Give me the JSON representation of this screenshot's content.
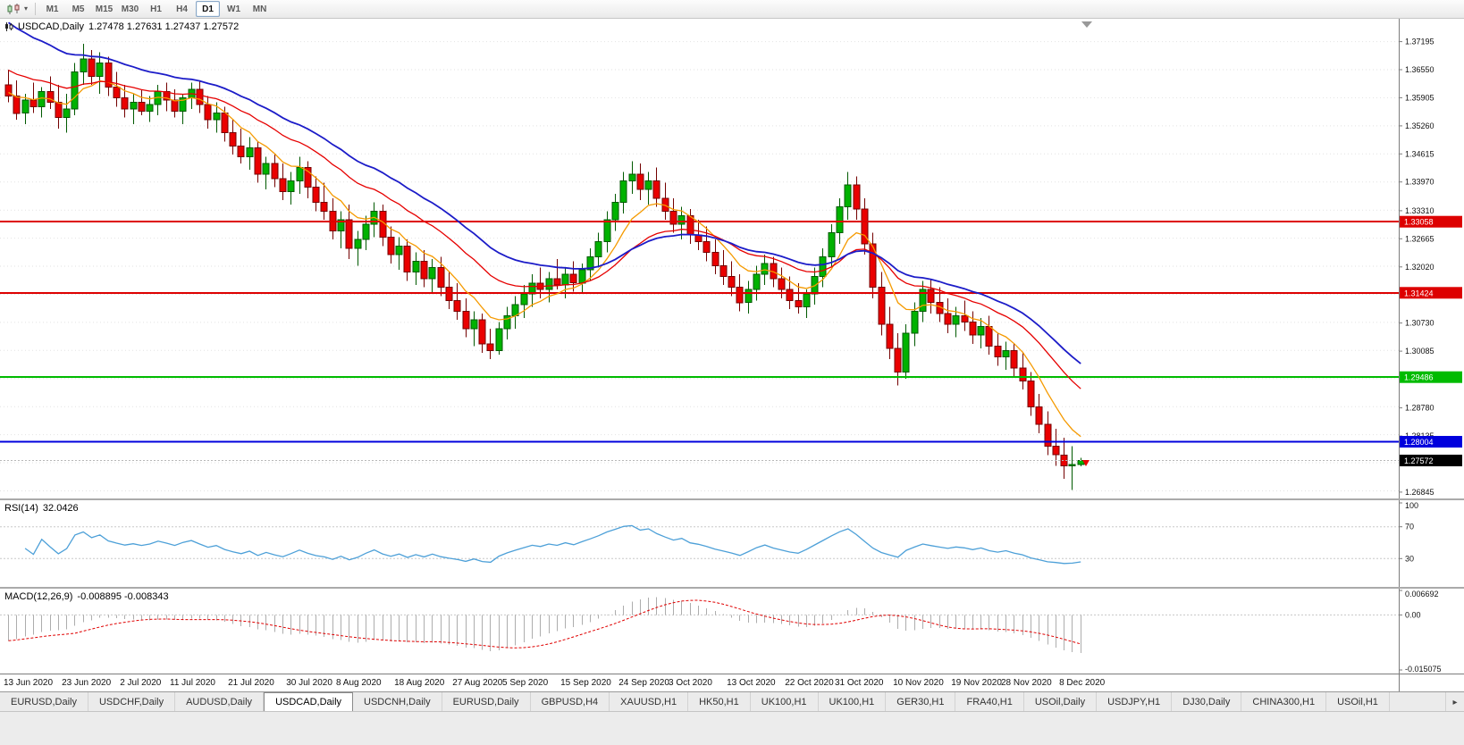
{
  "toolbar": {
    "dropdown_caret": "▾",
    "timeframes": [
      {
        "label": "M1",
        "active": false
      },
      {
        "label": "M5",
        "active": false
      },
      {
        "label": "M15",
        "active": false
      },
      {
        "label": "M30",
        "active": false
      },
      {
        "label": "H1",
        "active": false
      },
      {
        "label": "H4",
        "active": false
      },
      {
        "label": "D1",
        "active": true
      },
      {
        "label": "W1",
        "active": false
      },
      {
        "label": "MN",
        "active": false
      }
    ]
  },
  "price_panel": {
    "title": "USDCAD,Daily",
    "ohlc": "1.27478 1.27631 1.27437 1.27572"
  },
  "rsi_panel": {
    "label": "RSI(14)",
    "value": "32.0426",
    "period": 14,
    "color": "#4da0d8",
    "axis_values": [
      {
        "value": 100,
        "label": "100",
        "dotted": false
      },
      {
        "value": 70,
        "label": "70",
        "dotted": true
      },
      {
        "value": 30,
        "label": "30",
        "dotted": true
      }
    ]
  },
  "macd_panel": {
    "label": "MACD(12,26,9)",
    "value": "-0.008895 -0.008343",
    "fast": 12,
    "slow": 26,
    "signal": 9,
    "axis": {
      "top": {
        "label": "0.006692",
        "value": 0.006692
      },
      "zero": {
        "label": "0.00",
        "value": 0
      },
      "bottom": {
        "label": "-0.015075",
        "value": -0.015075
      }
    }
  },
  "hlines": [
    {
      "value": 1.33058,
      "label": "1.33058",
      "color": "#dd0000",
      "width": 2
    },
    {
      "value": 1.31424,
      "label": "1.31424",
      "color": "#dd0000",
      "width": 2
    },
    {
      "value": 1.29486,
      "label": "1.29486",
      "color": "#00bb00",
      "width": 2
    },
    {
      "value": 1.28004,
      "label": "1.28004",
      "color": "#0000dd",
      "width": 2
    }
  ],
  "current_price": {
    "label": "1.27572",
    "value": 1.27572
  },
  "x_axis_labels": [
    {
      "text": "13 Jun 2020",
      "bar": 0
    },
    {
      "text": "23 Jun 2020",
      "bar": 7
    },
    {
      "text": "2 Jul 2020",
      "bar": 14
    },
    {
      "text": "11 Jul 2020",
      "bar": 20
    },
    {
      "text": "21 Jul 2020",
      "bar": 27
    },
    {
      "text": "30 Jul 2020",
      "bar": 34
    },
    {
      "text": "8 Aug 2020",
      "bar": 40
    },
    {
      "text": "18 Aug 2020",
      "bar": 47
    },
    {
      "text": "27 Aug 2020",
      "bar": 54
    },
    {
      "text": "5 Sep 2020",
      "bar": 60
    },
    {
      "text": "15 Sep 2020",
      "bar": 67
    },
    {
      "text": "24 Sep 2020",
      "bar": 74
    },
    {
      "text": "3 Oct 2020",
      "bar": 80
    },
    {
      "text": "13 Oct 2020",
      "bar": 87
    },
    {
      "text": "22 Oct 2020",
      "bar": 94
    },
    {
      "text": "31 Oct 2020",
      "bar": 100
    },
    {
      "text": "10 Nov 2020",
      "bar": 107
    },
    {
      "text": "19 Nov 2020",
      "bar": 114
    },
    {
      "text": "28 Nov 2020",
      "bar": 120
    },
    {
      "text": "8 Dec 2020",
      "bar": 127
    }
  ],
  "tabs": {
    "scroll_right_glyph": "▸",
    "items": [
      {
        "label": "EURUSD,Daily",
        "active": false
      },
      {
        "label": "USDCHF,Daily",
        "active": false
      },
      {
        "label": "AUDUSD,Daily",
        "active": false
      },
      {
        "label": "USDCAD,Daily",
        "active": true
      },
      {
        "label": "USDCNH,Daily",
        "active": false
      },
      {
        "label": "EURUSD,Daily",
        "active": false
      },
      {
        "label": "GBPUSD,H4",
        "active": false
      },
      {
        "label": "XAUUSD,H1",
        "active": false
      },
      {
        "label": "HK50,H1",
        "active": false
      },
      {
        "label": "UK100,H1",
        "active": false
      },
      {
        "label": "UK100,H1",
        "active": false
      },
      {
        "label": "GER30,H1",
        "active": false
      },
      {
        "label": "FRA40,H1",
        "active": false
      },
      {
        "label": "USOil,Daily",
        "active": false
      },
      {
        "label": "USDJPY,H1",
        "active": false
      },
      {
        "label": "DJ30,Daily",
        "active": false
      },
      {
        "label": "CHINA300,H1",
        "active": false
      },
      {
        "label": "USOil,H1",
        "active": false
      }
    ]
  },
  "chart_data": {
    "type": "candlestick",
    "symbol": "USDCAD",
    "timeframe": "Daily",
    "ylim": [
      1.267,
      1.3772
    ],
    "grid_start": 1.37195,
    "grid_step": 0.00645,
    "colors": {
      "bull": "#00b200",
      "bull_border": "#005a00",
      "bear": "#ea0000",
      "bear_border": "#740000",
      "macd_hist": "#adadad",
      "macd_signal": "#e00000",
      "grid": "#e2e2e2",
      "axis_line": "#7c7c7c"
    },
    "y_ticks": [
      {
        "price": 1.37195,
        "label": "1.37195"
      },
      {
        "price": 1.3655,
        "label": "1.36550"
      },
      {
        "price": 1.35905,
        "label": "1.35905"
      },
      {
        "price": 1.3526,
        "label": "1.35260"
      },
      {
        "price": 1.34615,
        "label": "1.34615"
      },
      {
        "price": 1.3397,
        "label": "1.33970"
      },
      {
        "price": 1.3331,
        "label": "1.33310"
      },
      {
        "price": 1.32665,
        "label": "1.32665"
      },
      {
        "price": 1.3202,
        "label": "1.32020"
      },
      {
        "price": 1.3073,
        "label": "1.30730"
      },
      {
        "price": 1.30085,
        "label": "1.30085"
      },
      {
        "price": 1.2878,
        "label": "1.28780"
      },
      {
        "price": 1.28135,
        "label": "1.28135"
      },
      {
        "price": 1.26845,
        "label": "1.26845"
      }
    ],
    "moving_averages": [
      {
        "period": 8,
        "seed": 1.3605,
        "color": "#f59a00",
        "width": 1.3
      },
      {
        "period": 20,
        "seed": 1.366,
        "color": "#e60000",
        "width": 1.3
      },
      {
        "period": 30,
        "seed": 1.3775,
        "color": "#1c1cc8",
        "width": 1.8
      }
    ],
    "candles": [
      [
        1.362,
        1.3655,
        1.358,
        1.3595
      ],
      [
        1.3595,
        1.363,
        1.354,
        1.3555
      ],
      [
        1.3555,
        1.36,
        1.353,
        1.3585
      ],
      [
        1.3585,
        1.3625,
        1.3555,
        1.357
      ],
      [
        1.357,
        1.3615,
        1.3545,
        1.3605
      ],
      [
        1.3605,
        1.364,
        1.3565,
        1.358
      ],
      [
        1.358,
        1.362,
        1.352,
        1.3545
      ],
      [
        1.3545,
        1.36,
        1.351,
        1.3565
      ],
      [
        1.3565,
        1.367,
        1.355,
        1.365
      ],
      [
        1.365,
        1.3715,
        1.362,
        1.368
      ],
      [
        1.368,
        1.37,
        1.362,
        1.364
      ],
      [
        1.364,
        1.3695,
        1.36,
        1.367
      ],
      [
        1.367,
        1.3685,
        1.3595,
        1.3615
      ],
      [
        1.3615,
        1.365,
        1.357,
        1.359
      ],
      [
        1.359,
        1.362,
        1.3545,
        1.3565
      ],
      [
        1.3565,
        1.36,
        1.353,
        1.358
      ],
      [
        1.358,
        1.361,
        1.355,
        1.356
      ],
      [
        1.356,
        1.3595,
        1.3535,
        1.3575
      ],
      [
        1.3575,
        1.362,
        1.355,
        1.3605
      ],
      [
        1.3605,
        1.3625,
        1.356,
        1.3585
      ],
      [
        1.3585,
        1.361,
        1.3545,
        1.356
      ],
      [
        1.356,
        1.36,
        1.353,
        1.359
      ],
      [
        1.359,
        1.3625,
        1.3565,
        1.361
      ],
      [
        1.361,
        1.363,
        1.3555,
        1.3575
      ],
      [
        1.3575,
        1.3595,
        1.352,
        1.354
      ],
      [
        1.354,
        1.358,
        1.351,
        1.3555
      ],
      [
        1.3555,
        1.357,
        1.349,
        1.351
      ],
      [
        1.351,
        1.354,
        1.346,
        1.348
      ],
      [
        1.348,
        1.352,
        1.344,
        1.3455
      ],
      [
        1.3455,
        1.35,
        1.3425,
        1.3475
      ],
      [
        1.3475,
        1.349,
        1.3395,
        1.3415
      ],
      [
        1.3415,
        1.3455,
        1.338,
        1.344
      ],
      [
        1.344,
        1.346,
        1.3385,
        1.3405
      ],
      [
        1.3405,
        1.344,
        1.3355,
        1.3375
      ],
      [
        1.3375,
        1.342,
        1.3345,
        1.34
      ],
      [
        1.34,
        1.3455,
        1.337,
        1.343
      ],
      [
        1.343,
        1.3445,
        1.336,
        1.3385
      ],
      [
        1.3385,
        1.341,
        1.333,
        1.335
      ],
      [
        1.335,
        1.3395,
        1.331,
        1.333
      ],
      [
        1.333,
        1.336,
        1.3265,
        1.3285
      ],
      [
        1.3285,
        1.333,
        1.3245,
        1.331
      ],
      [
        1.331,
        1.3345,
        1.322,
        1.3245
      ],
      [
        1.3245,
        1.3285,
        1.3205,
        1.3265
      ],
      [
        1.3265,
        1.332,
        1.324,
        1.33
      ],
      [
        1.33,
        1.335,
        1.327,
        1.333
      ],
      [
        1.333,
        1.3345,
        1.325,
        1.327
      ],
      [
        1.327,
        1.3295,
        1.321,
        1.323
      ],
      [
        1.323,
        1.327,
        1.3195,
        1.325
      ],
      [
        1.325,
        1.3265,
        1.317,
        1.319
      ],
      [
        1.319,
        1.3235,
        1.316,
        1.3215
      ],
      [
        1.3215,
        1.324,
        1.3155,
        1.3175
      ],
      [
        1.3175,
        1.322,
        1.314,
        1.32
      ],
      [
        1.32,
        1.3225,
        1.3135,
        1.3155
      ],
      [
        1.3155,
        1.319,
        1.3105,
        1.3125
      ],
      [
        1.3125,
        1.3165,
        1.308,
        1.31
      ],
      [
        1.31,
        1.313,
        1.304,
        1.306
      ],
      [
        1.306,
        1.31,
        1.302,
        1.308
      ],
      [
        1.308,
        1.3095,
        1.3005,
        1.3025
      ],
      [
        1.3025,
        1.306,
        1.299,
        1.301
      ],
      [
        1.301,
        1.3075,
        1.3,
        1.306
      ],
      [
        1.306,
        1.311,
        1.3035,
        1.309
      ],
      [
        1.309,
        1.3135,
        1.306,
        1.3115
      ],
      [
        1.3115,
        1.316,
        1.3085,
        1.314
      ],
      [
        1.314,
        1.3185,
        1.311,
        1.3165
      ],
      [
        1.3165,
        1.32,
        1.313,
        1.315
      ],
      [
        1.315,
        1.319,
        1.312,
        1.3175
      ],
      [
        1.3175,
        1.322,
        1.315,
        1.316
      ],
      [
        1.316,
        1.32,
        1.313,
        1.3185
      ],
      [
        1.3185,
        1.3215,
        1.3145,
        1.3165
      ],
      [
        1.3165,
        1.321,
        1.314,
        1.3195
      ],
      [
        1.3195,
        1.3245,
        1.317,
        1.3225
      ],
      [
        1.3225,
        1.328,
        1.32,
        1.326
      ],
      [
        1.326,
        1.333,
        1.3235,
        1.331
      ],
      [
        1.331,
        1.337,
        1.3285,
        1.335
      ],
      [
        1.335,
        1.342,
        1.3325,
        1.34
      ],
      [
        1.34,
        1.3445,
        1.337,
        1.3415
      ],
      [
        1.3415,
        1.344,
        1.3355,
        1.338
      ],
      [
        1.338,
        1.342,
        1.3345,
        1.34
      ],
      [
        1.34,
        1.343,
        1.334,
        1.336
      ],
      [
        1.336,
        1.3395,
        1.331,
        1.333
      ],
      [
        1.333,
        1.336,
        1.328,
        1.33
      ],
      [
        1.33,
        1.334,
        1.3265,
        1.332
      ],
      [
        1.332,
        1.3335,
        1.3255,
        1.3275
      ],
      [
        1.3275,
        1.331,
        1.324,
        1.326
      ],
      [
        1.326,
        1.3295,
        1.3215,
        1.3235
      ],
      [
        1.3235,
        1.3265,
        1.3185,
        1.3205
      ],
      [
        1.3205,
        1.324,
        1.316,
        1.318
      ],
      [
        1.318,
        1.3215,
        1.3135,
        1.3155
      ],
      [
        1.3155,
        1.3185,
        1.31,
        1.312
      ],
      [
        1.312,
        1.317,
        1.3095,
        1.315
      ],
      [
        1.315,
        1.3205,
        1.3125,
        1.3185
      ],
      [
        1.3185,
        1.323,
        1.316,
        1.321
      ],
      [
        1.321,
        1.3225,
        1.3155,
        1.3175
      ],
      [
        1.3175,
        1.32,
        1.313,
        1.315
      ],
      [
        1.315,
        1.318,
        1.3105,
        1.3125
      ],
      [
        1.3125,
        1.3165,
        1.3095,
        1.311
      ],
      [
        1.311,
        1.315,
        1.3085,
        1.314
      ],
      [
        1.314,
        1.32,
        1.3115,
        1.318
      ],
      [
        1.318,
        1.3245,
        1.3155,
        1.3225
      ],
      [
        1.3225,
        1.33,
        1.32,
        1.328
      ],
      [
        1.328,
        1.336,
        1.3255,
        1.334
      ],
      [
        1.334,
        1.342,
        1.331,
        1.339
      ],
      [
        1.339,
        1.341,
        1.331,
        1.3335
      ],
      [
        1.3335,
        1.336,
        1.323,
        1.3255
      ],
      [
        1.3255,
        1.328,
        1.313,
        1.3155
      ],
      [
        1.3155,
        1.319,
        1.3045,
        1.307
      ],
      [
        1.307,
        1.311,
        1.299,
        1.3015
      ],
      [
        1.3015,
        1.305,
        1.293,
        1.296
      ],
      [
        1.296,
        1.307,
        1.2945,
        1.305
      ],
      [
        1.305,
        1.312,
        1.302,
        1.31
      ],
      [
        1.31,
        1.317,
        1.3075,
        1.315
      ],
      [
        1.315,
        1.3175,
        1.3095,
        1.312
      ],
      [
        1.312,
        1.3155,
        1.3075,
        1.3095
      ],
      [
        1.3095,
        1.313,
        1.305,
        1.307
      ],
      [
        1.307,
        1.311,
        1.304,
        1.309
      ],
      [
        1.309,
        1.3125,
        1.3055,
        1.3075
      ],
      [
        1.3075,
        1.31,
        1.3025,
        1.3045
      ],
      [
        1.3045,
        1.3085,
        1.3015,
        1.3065
      ],
      [
        1.3065,
        1.309,
        1.3,
        1.302
      ],
      [
        1.302,
        1.305,
        1.2975,
        1.2995
      ],
      [
        1.2995,
        1.303,
        1.2965,
        1.301
      ],
      [
        1.301,
        1.3025,
        1.295,
        1.297
      ],
      [
        1.297,
        1.3005,
        1.292,
        1.294
      ],
      [
        1.294,
        1.296,
        1.286,
        1.288
      ],
      [
        1.288,
        1.291,
        1.282,
        1.284
      ],
      [
        1.284,
        1.287,
        1.277,
        1.279
      ],
      [
        1.279,
        1.283,
        1.2745,
        1.277
      ],
      [
        1.277,
        1.281,
        1.2715,
        1.2745
      ],
      [
        1.2745,
        1.279,
        1.269,
        1.2748
      ],
      [
        1.27478,
        1.27631,
        1.27437,
        1.27572
      ]
    ]
  }
}
